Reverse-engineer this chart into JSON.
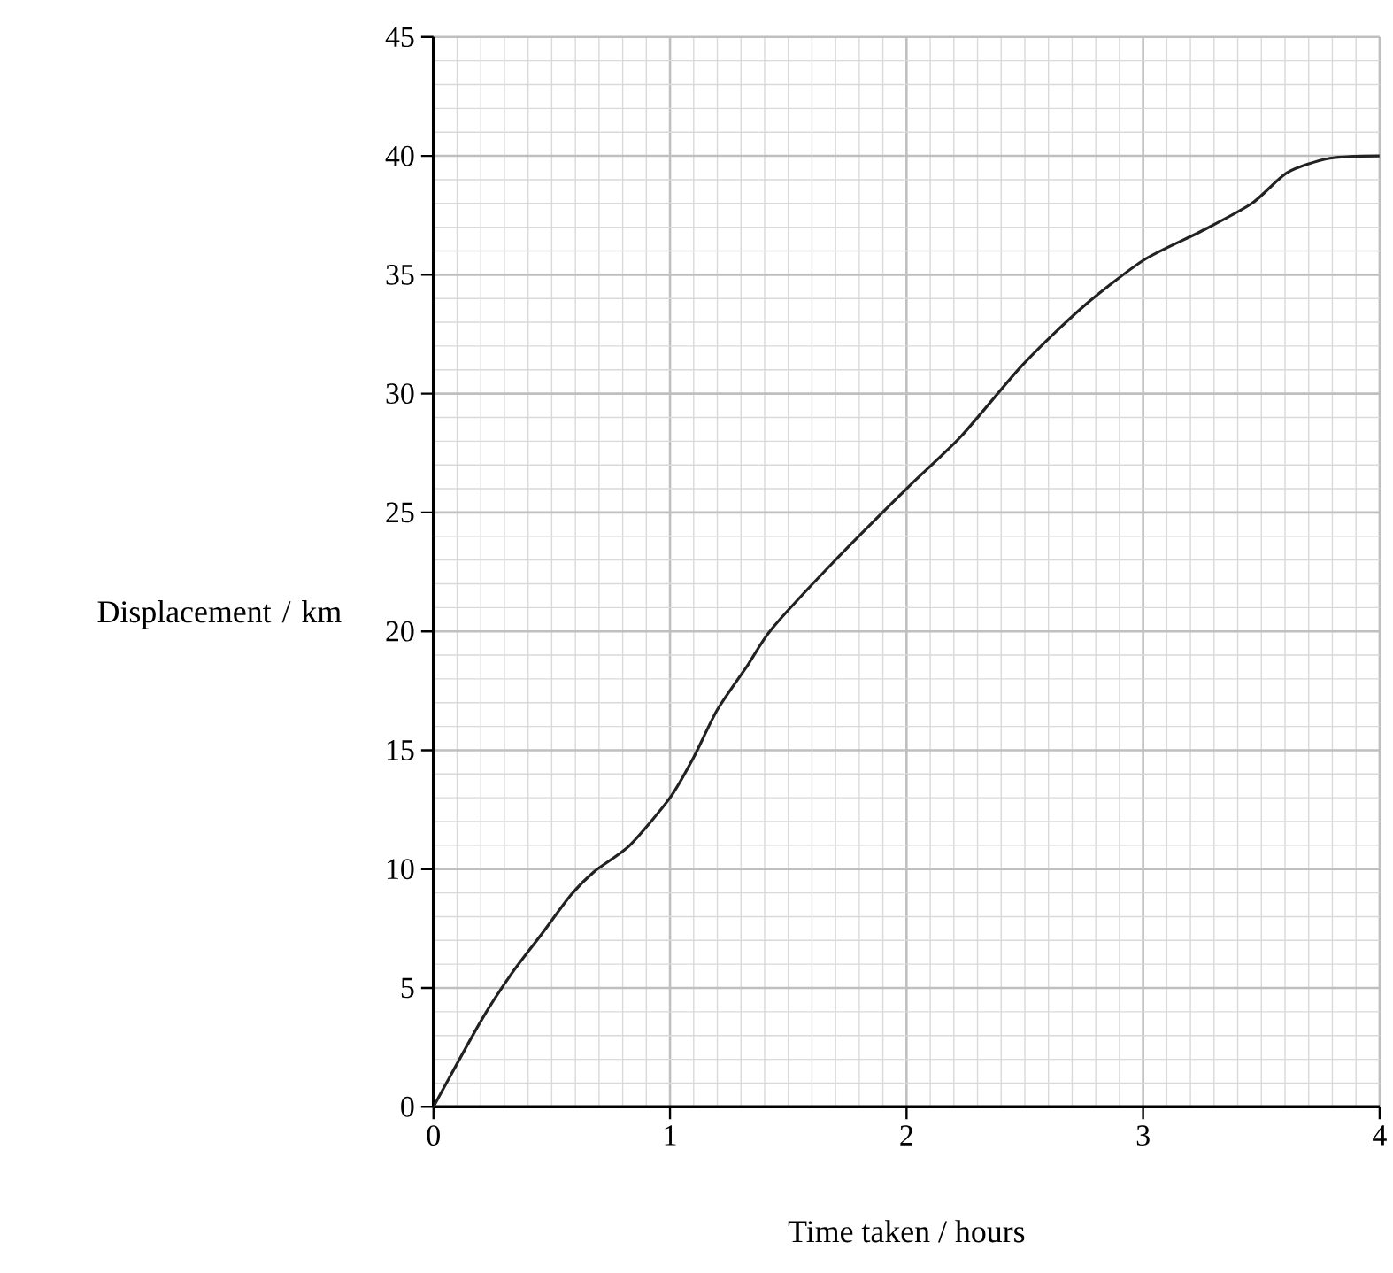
{
  "chart_data": {
    "type": "line",
    "xlabel": "Time taken / hours",
    "ylabel": "Displacement / km",
    "xlim": [
      0,
      4
    ],
    "ylim": [
      0,
      45
    ],
    "xticks": [
      0,
      1,
      2,
      3,
      4
    ],
    "yticks": [
      0,
      5,
      10,
      15,
      20,
      25,
      30,
      35,
      40,
      45
    ],
    "grid": true,
    "marker": "none",
    "line_style": "solid",
    "series": [
      {
        "color": "#222222",
        "x": [
          0,
          0.2,
          0.33,
          0.46,
          0.58,
          0.68,
          0.83,
          1.0,
          1.1,
          1.2,
          1.33,
          1.43,
          1.68,
          2.0,
          2.23,
          2.49,
          2.74,
          3.0,
          3.24,
          3.46,
          3.61,
          3.79,
          4.0
        ],
        "values": [
          0,
          3.6,
          5.6,
          7.3,
          8.9,
          9.9,
          11.0,
          13.0,
          14.7,
          16.7,
          18.6,
          20.1,
          22.8,
          26.0,
          28.2,
          31.2,
          33.6,
          35.6,
          36.8,
          38.0,
          39.3,
          39.9,
          40
        ]
      }
    ]
  }
}
